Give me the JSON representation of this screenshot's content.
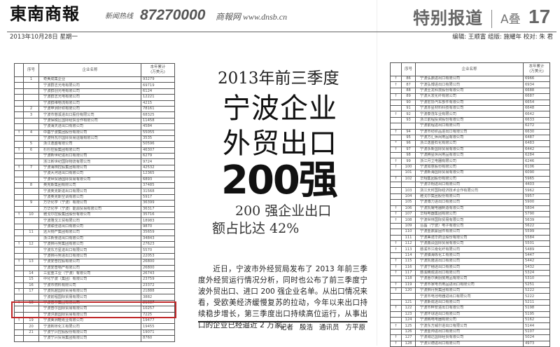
{
  "masthead": {
    "logo": "東南商報",
    "hotline_label": "新闻热线",
    "hotline": "87270000",
    "website": "商報网 www.dnsb.cn",
    "date": "2013年10月28日  星期一",
    "section": "特别报道",
    "stack": "A叠",
    "page": "17",
    "staff": "编辑: 王顺富  组版: 施耀年  校对: 朱  君"
  },
  "table_headers": [
    "",
    "序号",
    "企业名称",
    "本年累计\n(万美元)"
  ],
  "left_table": [
    [
      "",
      "1",
      "奇美成集企业",
      "93279"
    ],
    [
      "",
      "",
      "宁波群志光电有限公司",
      "69719"
    ],
    [
      "",
      "",
      "宁波群创光电有限公司",
      "6124"
    ],
    [
      "",
      "",
      "宁波群志光电有限公司",
      "12221"
    ],
    [
      "",
      "",
      "宁波群维物流有限公司",
      "4215"
    ],
    [
      "",
      "2",
      "宁波申洲针织有限公司",
      "78161"
    ],
    [
      "",
      "3",
      "宁波市慈溪进出口股份有限公司",
      "68325"
    ],
    [
      "",
      "",
      "宁波保税区国际经贸合作有限公司",
      "11458"
    ],
    [
      "",
      "",
      "宁波海天进出口有限公司",
      "4584"
    ],
    [
      "↑",
      "4",
      "中基宁波集团股份有限公司",
      "55055"
    ],
    [
      "",
      "",
      "宁波特瓦尔国际贸易运输有限公司",
      "3535"
    ],
    [
      "",
      "5",
      "浙江逸盛有限公司",
      "50596"
    ],
    [
      "↑",
      "6",
      "杉杉控股集团有限公司",
      "46307"
    ],
    [
      "",
      "",
      "宁波新世纪进出口有限公司",
      "6279"
    ],
    [
      "",
      "",
      "浙江新世纪国际物流有限公司",
      "9724"
    ],
    [
      "↑",
      "7",
      "宁波海田控股集团有限公司",
      "42532"
    ],
    [
      "",
      "",
      "宁波大河进出口有限公司",
      "12365"
    ],
    [
      "",
      "",
      "宁波世贸通国际贸易有限公司",
      "6893"
    ],
    [
      "",
      "8",
      "奥克斯集团有限公司",
      "37485"
    ],
    [
      "",
      "",
      "宁波奥克斯进出口有限公司",
      "31568"
    ],
    [
      "",
      "",
      "宁波奥克斯空调有限公司",
      "5917"
    ],
    [
      "",
      "9",
      "万华化学（宁波）有限公司",
      "36399"
    ],
    [
      "",
      "",
      "万华化学（宁波）能源贸易有限公司",
      "36317"
    ],
    [
      "↑",
      "10",
      "雅戈尔控股集团股份有限公司",
      "35716"
    ],
    [
      "",
      "",
      "宁波雅戈工贸有限公司",
      "18983"
    ],
    [
      "",
      "",
      "宁波联佳进出口有限公司",
      "9870"
    ],
    [
      "",
      "11",
      "远大物产集团有限公司",
      "35659"
    ],
    [
      "",
      "",
      "浙江新景进出口有限公司",
      "34843"
    ],
    [
      "↑",
      "12",
      "宁波狮丹努集团有限公司",
      "27623"
    ],
    [
      "",
      "",
      "宁波东方星进出口有限公司",
      "5570"
    ],
    [
      "",
      "",
      "宁波狮丹努进出口有限公司",
      "22053"
    ],
    [
      "↑",
      "13",
      "宁波爱普控股有限公司",
      "26800"
    ],
    [
      "",
      "",
      "宁波爱普物产有限公司",
      "26800"
    ],
    [
      "",
      "14",
      "三星重工业（宁波）有限公司",
      "26743"
    ],
    [
      "",
      "15",
      "中化宁波（集团）有限公司",
      "23759"
    ],
    [
      "",
      "16",
      "宁波市燃料有限公司",
      "23372"
    ],
    [
      "↑",
      "17",
      "宁波凯越国际贸易有限公司",
      "21888"
    ],
    [
      "",
      "",
      "宁波前程国际贸易有限公司",
      "3882"
    ],
    [
      "↑",
      "18",
      "宁波普尔集团有限公司",
      "21087"
    ],
    [
      "",
      "",
      "宁波普尔国际贸易有限公司",
      "10257"
    ],
    [
      "",
      "",
      "宁波洪鼎国际贸易有限公司",
      "7225"
    ],
    [
      "↑",
      "19",
      "宁波美洲鞋纸业有限公司",
      "19477"
    ],
    [
      "",
      "20",
      "宁波新桥化工有限公司",
      "19455"
    ],
    [
      "",
      "21",
      "宁波宁兴控股股份有限公司",
      "19071"
    ],
    [
      "",
      "",
      "宁波宁兴贸易集团有限公司",
      "8760"
    ]
  ],
  "right_table": [
    [
      "↑",
      "86",
      "宁波弘鼎进出口有限公司",
      "6966"
    ],
    [
      "↑",
      "87",
      "宁波弘博进出口有限公司",
      "6934"
    ],
    [
      "",
      "88",
      "宁波圣龙科技股份有限公司",
      "6688"
    ],
    [
      "↑",
      "89",
      "宁波大发化纤有限公司",
      "6687"
    ],
    [
      "",
      "90",
      "宁波宏协汽车部件有限公司",
      "6654"
    ],
    [
      "",
      "91",
      "宁波赤星材料科技有限公司",
      "6648"
    ],
    [
      "↑",
      "92",
      "宁波泰茂车业有限公司",
      "6642"
    ],
    [
      "",
      "93",
      "浙江前程投资股份有限公司",
      "6633"
    ],
    [
      "",
      "",
      "宁波前程进出口有限公司",
      "6272"
    ],
    [
      "↑",
      "94",
      "宁波市纺织品进出口有限公司",
      "6630"
    ],
    [
      "",
      "95",
      "宁波方汇休闲用品有限公司",
      "6487"
    ],
    [
      "*",
      "96",
      "浙江逸盛石化有限公司",
      "6483"
    ],
    [
      "↑",
      "97",
      "宁波永新国际贸易有限公司",
      "6442"
    ],
    [
      "",
      "98",
      "宁波腾星休闲用品有限公司",
      "6284"
    ],
    [
      "↑",
      "99",
      "浙江月立电器有限公司",
      "6246"
    ],
    [
      "↑",
      "100",
      "宁波如意股份有限公司",
      "6106"
    ],
    [
      "",
      "101",
      "宁波新海国际贸易有限公司",
      "6090"
    ],
    [
      "↑",
      "102",
      "华翔集团股份有限公司",
      "5965"
    ],
    [
      "",
      "",
      "宁波华翔进出口有限公司",
      "4403"
    ],
    [
      "",
      "103",
      "浙江天时国际经济技术合作有限公司",
      "5962"
    ],
    [
      "",
      "104",
      "雅戈尔集团股份有限公司",
      "5957"
    ],
    [
      "",
      "105",
      "宁波博力进出口有限公司",
      "5900"
    ],
    [
      "↑",
      "106",
      "宁波凯耀电器制造有限公司",
      "5804"
    ],
    [
      "↑",
      "107",
      "华翔电器集团有限公司",
      "5790"
    ],
    [
      "↑",
      "108",
      "宁波世林国际贸易有限公司",
      "5639"
    ],
    [
      "",
      "109",
      "台晶（宁波）电子有限公司",
      "5622"
    ],
    [
      "",
      "110",
      "宁波金鼎紧固件有限公司",
      "5599"
    ],
    [
      "",
      "111",
      "宁波美诺华药业股份有限公司",
      "5584"
    ],
    [
      "↑",
      "112",
      "宁波鑫焱国际贸易有限公司",
      "5501"
    ],
    [
      "↑",
      "113",
      "慈溪市江南化纤有限公司",
      "5489"
    ],
    [
      "",
      "114",
      "宁波镇海炼化工有限公司",
      "5447"
    ],
    [
      "↑",
      "115",
      "宁波凯隆进出口有限公司",
      "5442"
    ],
    [
      "↑",
      "116",
      "宁波宁穗进出口有限公司",
      "5432"
    ],
    [
      "↑",
      "117",
      "慈溪精成进出口有限公司",
      "5324"
    ],
    [
      "",
      "118",
      "宁波惠尔美厨房用品有限公司",
      "5310"
    ],
    [
      "↑",
      "119",
      "宁波市家电日用品进出口有限公司",
      "5251"
    ],
    [
      "↑",
      "120",
      "宁波狮丹努集团有限公司",
      "5222"
    ],
    [
      "",
      "",
      "宁波市电池电器进出口有限公司",
      "5222"
    ],
    [
      "",
      "121",
      "宁波斯成进出口有限公司",
      "5211"
    ],
    [
      "↑",
      "122",
      "宁波市畔安进出口有限公司",
      "5198"
    ],
    [
      "",
      "123",
      "宁波环球进出口有限公司",
      "5195"
    ],
    [
      "",
      "124",
      "宁波韩电电器有限公司",
      "5162"
    ],
    [
      "↑",
      "125",
      "宁波东方威尔进出口有限公司",
      "5144"
    ],
    [
      "",
      "126",
      "宁波金帅进出口有限公司",
      "5107"
    ],
    [
      "↑",
      "127",
      "宁波城达国际经贸有限公司",
      "5024"
    ],
    [
      "↑",
      "128",
      "宁波贝德进出口有限公司",
      "4973"
    ]
  ],
  "article": {
    "kicker": "2013年前三季度",
    "headline_1": "宁波企业",
    "headline_2": "外贸出口",
    "headline_3": "200强",
    "subhead_1": "200 强企业出口",
    "subhead_2": "额占比达 42%",
    "body": "近日，宁波市外经贸局发布了 2013 年前三季度外经贸运行情况分析，同时也公布了前三季度宁波外贸出口、进口 200 强企业名单。从出口情况来看，受欧美经济缓慢复苏的拉动，今年以来出口持续稳步增长，第三季度出口持续高位运行，从事出口的企业已经逼近 2 万家。",
    "byline": "记者 殷浩  通讯员 方平原"
  },
  "colors": {
    "highlight_box": "#c0282a",
    "text": "#231f20"
  }
}
